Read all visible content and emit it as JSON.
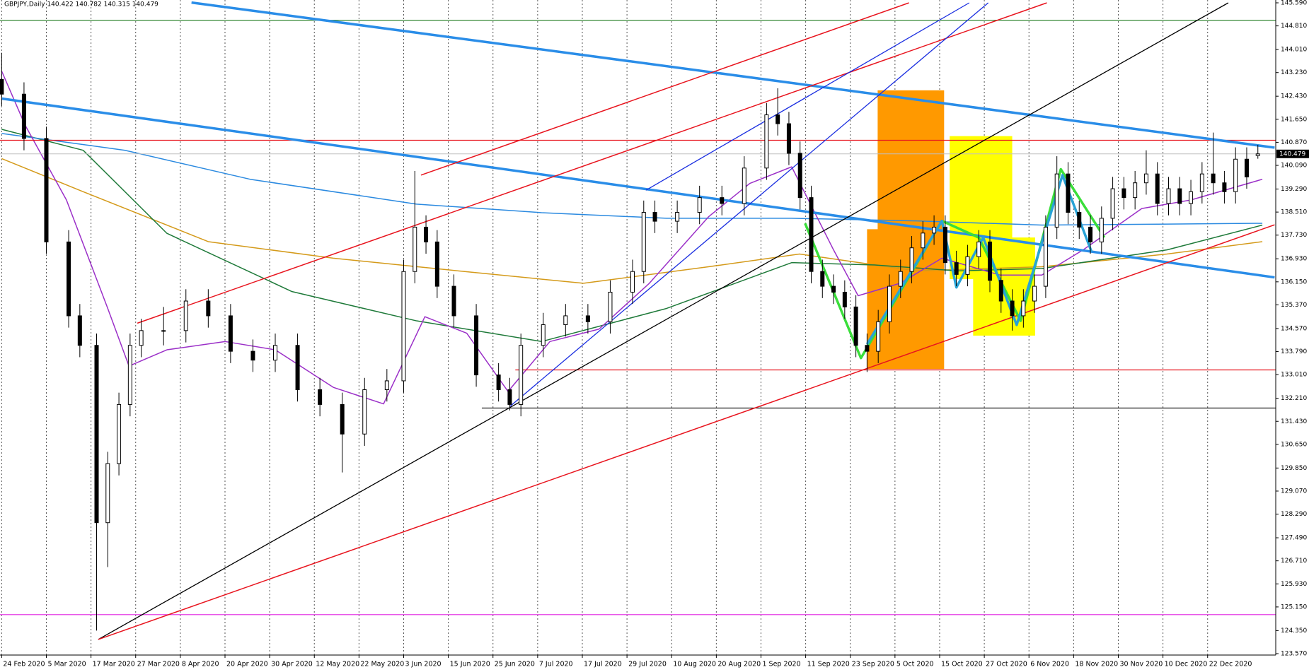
{
  "chart_data": {
    "type": "candlestick",
    "title": "GBPJPY,Daily  140.422 140.782 140.315 140.479",
    "current_price": 140.479,
    "xlim": [
      -0.3,
      228.2
    ],
    "ylim": [
      123.57,
      145.59
    ],
    "grid": true,
    "xticks": [
      {
        "value": 0,
        "label": "24 Feb 2020"
      },
      {
        "value": 8,
        "label": "5 Mar 2020"
      },
      {
        "value": 16,
        "label": "17 Mar 2020"
      },
      {
        "value": 24,
        "label": "27 Mar 2020"
      },
      {
        "value": 32,
        "label": "8 Apr 2020"
      },
      {
        "value": 40,
        "label": "20 Apr 2020"
      },
      {
        "value": 48,
        "label": "30 Apr 2020"
      },
      {
        "value": 56,
        "label": "12 May 2020"
      },
      {
        "value": 64,
        "label": "22 May 2020"
      },
      {
        "value": 72,
        "label": "3 Jun 2020"
      },
      {
        "value": 80,
        "label": "15 Jun 2020"
      },
      {
        "value": 88,
        "label": "25 Jun 2020"
      },
      {
        "value": 96,
        "label": "7 Jul 2020"
      },
      {
        "value": 104,
        "label": "17 Jul 2020"
      },
      {
        "value": 112,
        "label": "29 Jul 2020"
      },
      {
        "value": 120,
        "label": "10 Aug 2020"
      },
      {
        "value": 128,
        "label": "20 Aug 2020"
      },
      {
        "value": 136,
        "label": "1 Sep 2020"
      },
      {
        "value": 144,
        "label": "11 Sep 2020"
      },
      {
        "value": 152,
        "label": "23 Sep 2020"
      },
      {
        "value": 160,
        "label": "5 Oct 2020"
      },
      {
        "value": 168,
        "label": "15 Oct 2020"
      },
      {
        "value": 176,
        "label": "27 Oct 2020"
      },
      {
        "value": 184,
        "label": "6 Nov 2020"
      },
      {
        "value": 192,
        "label": "18 Nov 2020"
      },
      {
        "value": 200,
        "label": "30 Nov 2020"
      },
      {
        "value": 208,
        "label": "10 Dec 2020"
      },
      {
        "value": 216,
        "label": "22 Dec 2020"
      }
    ],
    "yticks": [
      {
        "value": 123.57,
        "label": "123.570"
      },
      {
        "value": 124.35,
        "label": "124.350"
      },
      {
        "value": 125.15,
        "label": "125.150"
      },
      {
        "value": 125.93,
        "label": "125.930"
      },
      {
        "value": 126.71,
        "label": "126.710"
      },
      {
        "value": 127.49,
        "label": "127.490"
      },
      {
        "value": 128.29,
        "label": "128.290"
      },
      {
        "value": 129.07,
        "label": "129.070"
      },
      {
        "value": 129.85,
        "label": "129.850"
      },
      {
        "value": 130.65,
        "label": "130.650"
      },
      {
        "value": 131.43,
        "label": "131.430"
      },
      {
        "value": 132.21,
        "label": "132.210"
      },
      {
        "value": 133.01,
        "label": "133.010"
      },
      {
        "value": 133.79,
        "label": "133.790"
      },
      {
        "value": 134.57,
        "label": "134.570"
      },
      {
        "value": 135.37,
        "label": "135.370"
      },
      {
        "value": 136.15,
        "label": "136.150"
      },
      {
        "value": 136.93,
        "label": "136.930"
      },
      {
        "value": 137.73,
        "label": "137.730"
      },
      {
        "value": 138.51,
        "label": "138.510"
      },
      {
        "value": 139.29,
        "label": "139.290"
      },
      {
        "value": 140.09,
        "label": "140.090"
      },
      {
        "value": 140.87,
        "label": "140.870"
      },
      {
        "value": 141.65,
        "label": "141.650"
      },
      {
        "value": 142.43,
        "label": "142.430"
      },
      {
        "value": 143.23,
        "label": "143.230"
      },
      {
        "value": 144.01,
        "label": "144.010"
      },
      {
        "value": 144.81,
        "label": "144.810"
      },
      {
        "value": 145.59,
        "label": "145.590"
      }
    ],
    "candles": {
      "up_color": "#ffffff",
      "down_color": "#000000",
      "x": [
        0,
        4,
        8,
        12,
        14,
        17,
        19,
        21,
        23,
        25,
        29,
        33,
        37,
        41,
        45,
        49,
        53,
        57,
        61,
        65,
        69,
        72,
        74,
        76,
        78,
        81,
        85,
        89,
        91,
        93,
        97,
        101,
        105,
        109,
        113,
        115,
        117,
        121,
        125,
        129,
        133,
        137,
        139,
        141,
        143,
        145,
        147,
        149,
        151,
        153,
        155,
        157,
        159,
        161,
        163,
        165,
        167,
        169,
        171,
        173,
        175,
        177,
        179,
        181,
        183,
        185,
        187,
        189,
        191,
        193,
        195,
        197,
        199,
        201,
        203,
        205,
        207,
        209,
        211,
        213,
        215,
        217,
        219,
        221,
        223,
        225
      ],
      "open": [
        143.0,
        142.5,
        141.0,
        137.5,
        135.0,
        134.0,
        128.0,
        130.0,
        132.0,
        134.0,
        134.5,
        134.5,
        135.5,
        135.0,
        133.8,
        133.5,
        134.0,
        132.5,
        132.0,
        131.0,
        132.5,
        132.8,
        136.5,
        138.0,
        137.5,
        136.0,
        135.0,
        133.0,
        132.5,
        132.0,
        134.0,
        134.7,
        135.0,
        134.8,
        135.8,
        136.5,
        138.5,
        138.2,
        138.5,
        139.0,
        138.8,
        140.0,
        141.8,
        141.5,
        140.5,
        139.0,
        136.5,
        136.0,
        135.8,
        135.3,
        134.0,
        133.8,
        134.8,
        136.0,
        136.5,
        137.3,
        137.8,
        138.0,
        136.8,
        136.4,
        137.0,
        137.5,
        136.2,
        135.5,
        135.0,
        135.5,
        136.0,
        138.0,
        139.8,
        138.5,
        138.0,
        137.5,
        138.3,
        139.3,
        139.0,
        139.5,
        139.8,
        138.8,
        139.3,
        138.8,
        139.2,
        139.8,
        139.5,
        139.2,
        140.3,
        140.422
      ],
      "high": [
        143.9,
        142.9,
        141.4,
        137.9,
        135.4,
        134.4,
        130.4,
        132.4,
        134.4,
        134.9,
        135.3,
        135.9,
        135.9,
        135.4,
        134.2,
        134.4,
        134.4,
        132.9,
        132.4,
        132.9,
        133.2,
        136.9,
        139.9,
        138.4,
        137.9,
        136.4,
        135.4,
        133.4,
        132.9,
        134.4,
        135.1,
        135.4,
        135.4,
        136.2,
        136.9,
        138.9,
        138.9,
        138.9,
        139.4,
        139.4,
        140.4,
        142.2,
        142.7,
        141.9,
        140.9,
        139.4,
        136.9,
        136.4,
        136.2,
        135.7,
        134.4,
        135.2,
        136.4,
        136.9,
        137.7,
        138.2,
        138.4,
        138.4,
        137.2,
        137.4,
        137.9,
        137.9,
        136.6,
        135.9,
        135.9,
        136.4,
        138.4,
        140.4,
        140.2,
        138.9,
        138.4,
        138.7,
        139.7,
        139.7,
        139.9,
        140.6,
        140.2,
        139.7,
        139.7,
        139.6,
        140.2,
        141.2,
        139.9,
        140.7,
        140.7,
        140.782
      ],
      "low": [
        142.1,
        140.6,
        137.1,
        134.6,
        133.6,
        124.35,
        126.5,
        129.6,
        131.6,
        133.6,
        134.0,
        134.1,
        134.6,
        133.4,
        133.1,
        133.1,
        132.1,
        131.6,
        129.7,
        130.6,
        132.1,
        132.4,
        136.1,
        137.1,
        135.6,
        134.6,
        132.6,
        132.1,
        131.8,
        131.6,
        133.6,
        134.3,
        134.4,
        134.4,
        135.4,
        136.1,
        137.8,
        137.8,
        138.1,
        138.4,
        138.4,
        139.6,
        141.1,
        140.1,
        138.6,
        136.1,
        135.6,
        135.4,
        134.9,
        133.6,
        133.1,
        133.4,
        134.4,
        135.6,
        136.1,
        136.9,
        137.4,
        136.4,
        136.0,
        136.0,
        136.6,
        135.8,
        135.1,
        134.5,
        134.6,
        135.1,
        135.6,
        137.6,
        138.1,
        137.6,
        137.1,
        137.1,
        137.9,
        138.6,
        138.6,
        139.1,
        138.4,
        138.4,
        138.4,
        138.4,
        138.8,
        139.1,
        138.8,
        138.8,
        139.3,
        140.315
      ],
      "close": [
        142.5,
        141.0,
        137.5,
        135.0,
        134.0,
        128.0,
        130.0,
        132.0,
        134.0,
        134.5,
        134.5,
        135.5,
        135.0,
        133.8,
        133.5,
        134.0,
        132.5,
        132.0,
        131.0,
        132.5,
        132.8,
        136.5,
        138.0,
        137.5,
        136.0,
        135.0,
        133.0,
        132.5,
        132.0,
        134.0,
        134.7,
        135.0,
        134.8,
        135.8,
        136.5,
        138.5,
        138.2,
        138.5,
        139.0,
        138.8,
        140.0,
        141.8,
        141.5,
        140.5,
        139.0,
        136.5,
        136.0,
        135.8,
        135.3,
        134.0,
        133.8,
        134.8,
        136.0,
        136.5,
        137.3,
        137.8,
        138.0,
        136.8,
        136.4,
        137.0,
        137.5,
        136.2,
        135.5,
        135.0,
        135.5,
        136.0,
        138.0,
        139.8,
        138.5,
        138.0,
        137.5,
        138.3,
        139.3,
        139.0,
        139.5,
        139.8,
        138.8,
        139.3,
        138.8,
        139.2,
        139.8,
        139.5,
        139.2,
        140.3,
        139.7,
        140.479
      ]
    },
    "overlays": [
      {
        "kind": "rect",
        "color": "#ff9900",
        "x": [
          156.9,
          168.8
        ],
        "y": [
          142.63,
          133.2
        ]
      },
      {
        "kind": "rect",
        "color": "#ff9900",
        "x": [
          155,
          157
        ],
        "y": [
          137.93,
          133.2
        ]
      },
      {
        "kind": "rect",
        "color": "#ffff00",
        "x": [
          169.8,
          181
        ],
        "y": [
          141.08,
          136.24
        ]
      },
      {
        "kind": "rect",
        "color": "#ffff00",
        "x": [
          174,
          185.1
        ],
        "y": [
          137.65,
          134.33
        ]
      },
      {
        "kind": "line",
        "color": "#d49a1a",
        "width": 1.5,
        "x": [
          0,
          14.6,
          37,
          59.4,
          81.8,
          104.2,
          126.6,
          142.9,
          163.9,
          186.3,
          208.7,
          225.8
        ],
        "y": [
          140.32,
          139.2,
          137.51,
          136.95,
          136.52,
          136.1,
          136.66,
          137.09,
          136.52,
          136.66,
          137.09,
          137.51
        ]
      },
      {
        "kind": "line",
        "color": "#1f7a3a",
        "width": 1.5,
        "x": [
          0,
          14.6,
          29.6,
          52,
          74.3,
          96.7,
          119.1,
          141.5,
          156.4,
          171.3,
          186.3,
          208.7,
          225.8
        ],
        "y": [
          141.31,
          140.6,
          137.79,
          135.82,
          134.83,
          134.13,
          135.25,
          136.8,
          136.72,
          136.52,
          136.6,
          137.23,
          138.07
        ]
      },
      {
        "kind": "line",
        "color": "#2b8ae0",
        "width": 1.5,
        "x": [
          0,
          22.1,
          44.5,
          74.3,
          96.7,
          119.1,
          141.5,
          163.9,
          186.3,
          225.8
        ],
        "y": [
          141.17,
          140.6,
          139.62,
          138.78,
          138.49,
          138.3,
          138.3,
          138.21,
          138.07,
          138.13
        ]
      },
      {
        "kind": "line",
        "color": "#9b30c8",
        "width": 1.5,
        "x": [
          0,
          4.2,
          11.6,
          19,
          22.8,
          29.6,
          40,
          49,
          59.4,
          68.4,
          75.8,
          83.3,
          90.7,
          98.2,
          107,
          116,
          126.6,
          134,
          141.5,
          149,
          153.4,
          160.9,
          168.4,
          178.8,
          186.3,
          193.7,
          204.2,
          213,
          225.8
        ],
        "y": [
          143.28,
          141.45,
          138.92,
          135.25,
          133.3,
          133.85,
          134.13,
          133.85,
          132.58,
          132.02,
          134.97,
          134.41,
          132.44,
          134.13,
          134.55,
          136.1,
          138.35,
          139.48,
          140.04,
          137.23,
          135.68,
          136.1,
          136.95,
          136.38,
          136.38,
          137.23,
          138.63,
          138.92,
          139.62
        ]
      },
      {
        "kind": "line",
        "color": "#1d7a1d",
        "width": 1.2,
        "x": [
          -0.3,
          228.2
        ],
        "y": [
          145.0,
          145.0
        ]
      },
      {
        "kind": "line",
        "color": "#e020e0",
        "width": 1.2,
        "x": [
          -0.3,
          228.2
        ],
        "y": [
          124.89,
          124.89
        ]
      },
      {
        "kind": "line",
        "color": "#e8141e",
        "width": 1.2,
        "x": [
          -0.3,
          228.2
        ],
        "y": [
          140.94,
          140.94
        ]
      },
      {
        "kind": "line",
        "color": "#e8141e",
        "width": 1.2,
        "x": [
          92,
          228.2
        ],
        "y": [
          133.17,
          133.17
        ]
      },
      {
        "kind": "line",
        "color": "#000000",
        "width": 1.2,
        "x": [
          86,
          228.2
        ],
        "y": [
          131.88,
          131.88
        ]
      },
      {
        "kind": "line",
        "color": "#c0c0c0",
        "width": 1,
        "x": [
          -0.3,
          228.2
        ],
        "y": [
          140.479,
          140.479
        ]
      },
      {
        "kind": "line",
        "color": "#2a8de8",
        "width": 3.5,
        "x": [
          34,
          228
        ],
        "y": [
          145.6,
          140.69
        ]
      },
      {
        "kind": "line",
        "color": "#2a8de8",
        "width": 3.5,
        "x": [
          0,
          228
        ],
        "y": [
          142.35,
          136.3
        ]
      },
      {
        "kind": "line",
        "color": "#000000",
        "width": 1.3,
        "x": [
          17.3,
          219.7
        ],
        "y": [
          124.05,
          145.59
        ]
      },
      {
        "kind": "line",
        "color": "#e8141e",
        "width": 1.5,
        "x": [
          17.3,
          228
        ],
        "y": [
          124.05,
          138.08
        ]
      },
      {
        "kind": "line",
        "color": "#e8141e",
        "width": 1.5,
        "x": [
          75.1,
          162.5
        ],
        "y": [
          139.76,
          145.59
        ]
      },
      {
        "kind": "line",
        "color": "#e8141e",
        "width": 1.5,
        "x": [
          24.3,
          187.2
        ],
        "y": [
          134.75,
          145.59
        ]
      },
      {
        "kind": "line",
        "color": "#1a2ee0",
        "width": 1.3,
        "x": [
          115.4,
          173.3
        ],
        "y": [
          139.25,
          145.59
        ]
      },
      {
        "kind": "line",
        "color": "#1a2ee0",
        "width": 1.3,
        "x": [
          91,
          176.7
        ],
        "y": [
          131.93,
          145.59
        ]
      },
      {
        "kind": "line",
        "color": "#3ade3a",
        "width": 3.5,
        "x": [
          143.9,
          153.9,
          168.4,
          175,
          182.5,
          189.7,
          197.5
        ],
        "y": [
          138.13,
          133.57,
          138.21,
          137.65,
          134.83,
          139.96,
          137.65
        ]
      },
      {
        "kind": "line",
        "color": "#29a3d6",
        "width": 3.5,
        "x": [
          155,
          168.4,
          171,
          175.8,
          181.8,
          190,
          195.2
        ],
        "y": [
          134.04,
          138.21,
          135.96,
          137.65,
          134.69,
          139.76,
          137.17
        ]
      }
    ]
  }
}
